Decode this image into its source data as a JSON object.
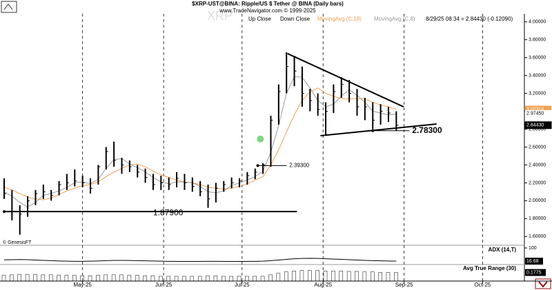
{
  "header": {
    "title": "$XRP-UST@BINA:  Ripple/US $ Tether @ BINA  (Daily bars)",
    "site": "www.TradeNavigator.com © 1999-2025",
    "watermark": "XRP",
    "copyright": "© GenesisFT"
  },
  "chart_data": [
    {
      "type": "ohlc",
      "legend": [
        "Up Close",
        "Down Close"
      ],
      "bar_color": "#000000",
      "status": "8/29/25 08:34 = 2.84430 (-0.12090)",
      "x": [
        0,
        3,
        6,
        9,
        12,
        15,
        18,
        21,
        24,
        27,
        30,
        33,
        36,
        39,
        42,
        45,
        48,
        51,
        54,
        57,
        60,
        63,
        66,
        69,
        72,
        75,
        78,
        81,
        84,
        87,
        90,
        93,
        96,
        99,
        102,
        105,
        108,
        111,
        114,
        117,
        120,
        123,
        126,
        129,
        132,
        135,
        138,
        141,
        144,
        147,
        150
      ],
      "high": [
        2.25,
        2.12,
        1.95,
        2.05,
        2.12,
        2.18,
        2.12,
        2.22,
        2.3,
        2.35,
        2.28,
        2.25,
        2.4,
        2.6,
        2.66,
        2.48,
        2.45,
        2.4,
        2.36,
        2.3,
        2.28,
        2.26,
        2.32,
        2.3,
        2.26,
        2.22,
        2.18,
        2.2,
        2.22,
        2.26,
        2.25,
        2.32,
        2.36,
        2.42,
        2.95,
        3.3,
        3.66,
        3.62,
        3.5,
        3.25,
        3.2,
        3.1,
        3.3,
        3.38,
        3.35,
        3.25,
        3.15,
        3.1,
        3.08,
        3.05,
        3.0
      ],
      "low": [
        2.02,
        1.78,
        1.62,
        1.82,
        1.95,
        2.02,
        2.0,
        2.06,
        2.12,
        2.16,
        2.15,
        2.08,
        2.18,
        2.35,
        2.38,
        2.3,
        2.32,
        2.26,
        2.2,
        2.12,
        2.12,
        2.12,
        2.15,
        2.12,
        2.1,
        2.05,
        1.92,
        1.98,
        2.1,
        2.14,
        2.15,
        2.18,
        2.24,
        2.3,
        2.38,
        2.85,
        3.2,
        3.28,
        3.05,
        3.0,
        2.95,
        2.74,
        2.98,
        3.15,
        3.1,
        2.95,
        2.9,
        2.8,
        2.85,
        2.88,
        2.78
      ],
      "close": [
        2.08,
        1.88,
        1.85,
        2.0,
        2.08,
        2.1,
        2.06,
        2.18,
        2.2,
        2.22,
        2.2,
        2.14,
        2.38,
        2.55,
        2.45,
        2.4,
        2.38,
        2.32,
        2.26,
        2.18,
        2.2,
        2.18,
        2.25,
        2.2,
        2.16,
        2.1,
        2.02,
        2.14,
        2.18,
        2.2,
        2.22,
        2.28,
        2.32,
        2.4,
        2.9,
        3.22,
        3.5,
        3.45,
        3.2,
        3.12,
        3.02,
        3.0,
        3.22,
        3.3,
        3.2,
        3.05,
        3.05,
        2.9,
        3.0,
        2.98,
        2.8443
      ],
      "series": [
        {
          "name": "MovingAvg (C,18)",
          "color": "#f0a050",
          "values": [
            2.15,
            2.12,
            2.08,
            2.04,
            2.02,
            2.01,
            2.03,
            2.07,
            2.11,
            2.14,
            2.17,
            2.18,
            2.21,
            2.27,
            2.32,
            2.36,
            2.4,
            2.41,
            2.38,
            2.33,
            2.29,
            2.26,
            2.23,
            2.21,
            2.2,
            2.18,
            2.15,
            2.14,
            2.13,
            2.14,
            2.16,
            2.19,
            2.23,
            2.27,
            2.4,
            2.57,
            2.77,
            2.96,
            3.12,
            3.22,
            3.26,
            3.2,
            3.17,
            3.14,
            3.14,
            3.14,
            3.14,
            3.1,
            3.07,
            3.05,
            3.02
          ]
        },
        {
          "name": "MovingAvg (C,8)",
          "color": "#999999",
          "values": [
            2.1,
            2.05,
            1.98,
            1.93,
            1.98,
            2.06,
            2.08,
            2.11,
            2.15,
            2.2,
            2.21,
            2.19,
            2.24,
            2.36,
            2.46,
            2.47,
            2.41,
            2.37,
            2.32,
            2.26,
            2.21,
            2.19,
            2.21,
            2.21,
            2.2,
            2.16,
            2.1,
            2.09,
            2.11,
            2.17,
            2.2,
            2.23,
            2.27,
            2.33,
            2.54,
            2.84,
            3.2,
            3.39,
            3.38,
            3.26,
            3.12,
            3.05,
            3.08,
            3.17,
            3.24,
            3.18,
            3.1,
            3.0,
            2.98,
            2.96,
            2.97
          ]
        }
      ],
      "price_tags": [
        {
          "value": 3.02314,
          "label": "3.02314",
          "color": "#f0a050"
        },
        {
          "value": 2.9745,
          "label": "2.97450",
          "color": "#ffffff"
        },
        {
          "value": 2.8443,
          "label": "2.84430",
          "color": "#000000"
        }
      ],
      "levels": [
        {
          "value": 1.879,
          "label": "1.87900",
          "x": [
            0,
            112
          ]
        },
        {
          "value": 2.393,
          "label": "2.39300",
          "x": [
            97,
            108
          ]
        },
        {
          "value": 2.783,
          "label": "2.78300",
          "x": [
            141,
            155
          ]
        }
      ],
      "trendlines": [
        {
          "x": [
            108.4,
            152.8
          ],
          "y": [
            3.645,
            3.05
          ]
        },
        {
          "x": [
            121,
            165.4
          ],
          "y": [
            2.727,
            2.858
          ]
        }
      ],
      "marker": {
        "x": 98,
        "y": 2.69,
        "color": "#7ed87e"
      },
      "xlim": [
        0,
        199
      ],
      "xticks": [
        {
          "value": 30,
          "label": "May-25"
        },
        {
          "value": 61,
          "label": "Jun-25"
        },
        {
          "value": 91,
          "label": "Jul-25"
        },
        {
          "value": 122,
          "label": "Aug-25"
        },
        {
          "value": 153,
          "label": "Sep-25"
        },
        {
          "value": 183,
          "label": "Oct-25"
        }
      ],
      "ylim": [
        1.51,
        4.09
      ],
      "yticks": [
        {
          "value": 1.6,
          "label": "1.60000"
        },
        {
          "value": 1.8,
          "label": "1.80000"
        },
        {
          "value": 2.0,
          "label": "2.00000"
        },
        {
          "value": 2.2,
          "label": "2.20000"
        },
        {
          "value": 2.4,
          "label": "2.40000"
        },
        {
          "value": 2.6,
          "label": "2.60000"
        },
        {
          "value": 2.8,
          "label": "2.80000"
        },
        {
          "value": 3.0,
          "label": "3.00000"
        },
        {
          "value": 3.2,
          "label": "3.20000"
        },
        {
          "value": 3.4,
          "label": "3.40000"
        },
        {
          "value": 3.6,
          "label": "3.60000"
        },
        {
          "value": 3.8,
          "label": "3.80000"
        },
        {
          "value": 4.0,
          "label": "4.00000"
        }
      ]
    },
    {
      "type": "line",
      "title": "ADX (14,T)",
      "color": "#000000",
      "xlim": [
        0,
        199
      ],
      "ylim": [
        0,
        100
      ],
      "yticks": [
        100
      ],
      "value_tag": {
        "value": 16.68,
        "label": "16.68"
      },
      "values": [
        25,
        26,
        27,
        26,
        24,
        22,
        20,
        18,
        17,
        16,
        16,
        17,
        18,
        20,
        22,
        22,
        21,
        20,
        19,
        18,
        17,
        16,
        15,
        15,
        15,
        15,
        16,
        16,
        15,
        15,
        15,
        15,
        16,
        17,
        20,
        24,
        28,
        32,
        34,
        35,
        34,
        32,
        30,
        28,
        26,
        24,
        22,
        20,
        19,
        18,
        16.68
      ]
    },
    {
      "type": "bar",
      "title": "Avg True Range (30)",
      "color": "#000000",
      "xlim": [
        0,
        199
      ],
      "ylim": [
        0,
        0.3
      ],
      "value_tag": {
        "value": 0.1775,
        "label": "0.1775"
      },
      "values": [
        0.12,
        0.13,
        0.14,
        0.14,
        0.14,
        0.13,
        0.13,
        0.12,
        0.12,
        0.12,
        0.11,
        0.11,
        0.12,
        0.13,
        0.13,
        0.13,
        0.12,
        0.12,
        0.11,
        0.11,
        0.1,
        0.1,
        0.1,
        0.1,
        0.1,
        0.1,
        0.11,
        0.11,
        0.1,
        0.1,
        0.1,
        0.1,
        0.1,
        0.1,
        0.13,
        0.16,
        0.19,
        0.21,
        0.22,
        0.22,
        0.22,
        0.21,
        0.21,
        0.21,
        0.2,
        0.2,
        0.19,
        0.19,
        0.18,
        0.18,
        0.1775
      ]
    }
  ]
}
